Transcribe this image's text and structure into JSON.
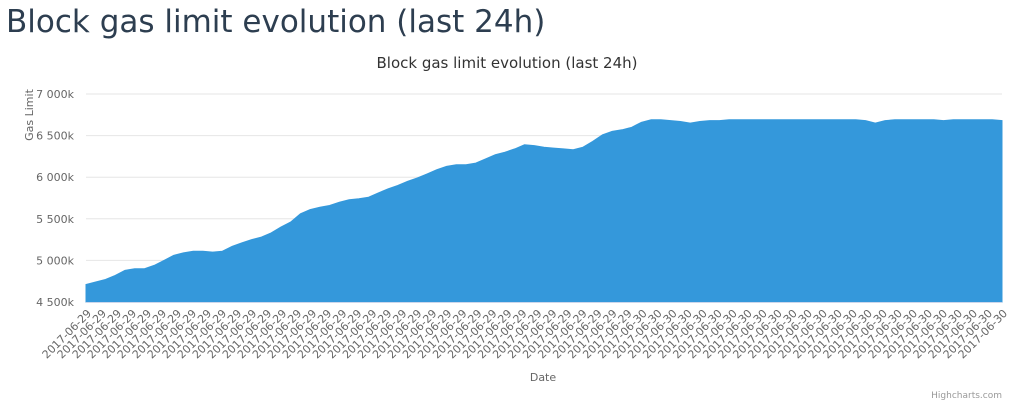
{
  "page": {
    "heading": "Block gas limit evolution (last 24h)",
    "credits": "Highcharts.com"
  },
  "chart_data": {
    "type": "area",
    "title": "Block gas limit evolution (last 24h)",
    "xlabel": "Date",
    "ylabel": "Gas Limit",
    "ylim": [
      4500000,
      7000000
    ],
    "yticks": [
      4500000,
      5000000,
      5500000,
      6000000,
      6500000,
      7000000
    ],
    "ytick_labels": [
      "4 500k",
      "5 000k",
      "5 500k",
      "6 000k",
      "6 500k",
      "7 000k"
    ],
    "x_tick_labels": [
      "2017-06-29",
      "2017-06-29",
      "2017-06-29",
      "2017-06-29",
      "2017-06-29",
      "2017-06-29",
      "2017-06-29",
      "2017-06-29",
      "2017-06-29",
      "2017-06-29",
      "2017-06-29",
      "2017-06-29",
      "2017-06-29",
      "2017-06-29",
      "2017-06-29",
      "2017-06-29",
      "2017-06-29",
      "2017-06-29",
      "2017-06-29",
      "2017-06-29",
      "2017-06-29",
      "2017-06-29",
      "2017-06-29",
      "2017-06-29",
      "2017-06-29",
      "2017-06-29",
      "2017-06-29",
      "2017-06-29",
      "2017-06-29",
      "2017-06-29",
      "2017-06-29",
      "2017-06-29",
      "2017-06-29",
      "2017-06-29",
      "2017-06-29",
      "2017-06-29",
      "2017-06-29",
      "2017-06-30",
      "2017-06-30",
      "2017-06-30",
      "2017-06-30",
      "2017-06-30",
      "2017-06-30",
      "2017-06-30",
      "2017-06-30",
      "2017-06-30",
      "2017-06-30",
      "2017-06-30",
      "2017-06-30",
      "2017-06-30",
      "2017-06-30",
      "2017-06-30",
      "2017-06-30",
      "2017-06-30",
      "2017-06-30",
      "2017-06-30",
      "2017-06-30",
      "2017-06-30",
      "2017-06-30",
      "2017-06-30",
      "2017-06-30",
      "2017-06-30"
    ],
    "series": [
      {
        "color": "#3498db",
        "values": [
          4710000,
          4740000,
          4770000,
          4820000,
          4880000,
          4900000,
          4900000,
          4940000,
          5000000,
          5060000,
          5090000,
          5110000,
          5110000,
          5100000,
          5110000,
          5170000,
          5210000,
          5250000,
          5280000,
          5330000,
          5400000,
          5460000,
          5560000,
          5610000,
          5640000,
          5660000,
          5700000,
          5730000,
          5740000,
          5760000,
          5810000,
          5860000,
          5900000,
          5950000,
          5990000,
          6040000,
          6090000,
          6130000,
          6150000,
          6150000,
          6170000,
          6220000,
          6270000,
          6300000,
          6340000,
          6390000,
          6380000,
          6360000,
          6350000,
          6340000,
          6330000,
          6360000,
          6430000,
          6510000,
          6550000,
          6570000,
          6600000,
          6660000,
          6690000,
          6690000,
          6680000,
          6670000,
          6650000,
          6670000,
          6680000,
          6680000,
          6690000,
          6690000,
          6690000,
          6690000,
          6690000,
          6690000,
          6690000,
          6690000,
          6690000,
          6690000,
          6690000,
          6690000,
          6690000,
          6690000,
          6680000,
          6650000,
          6680000,
          6690000,
          6690000,
          6690000,
          6690000,
          6690000,
          6680000,
          6690000,
          6690000,
          6690000,
          6690000,
          6690000,
          6680000
        ]
      }
    ]
  }
}
